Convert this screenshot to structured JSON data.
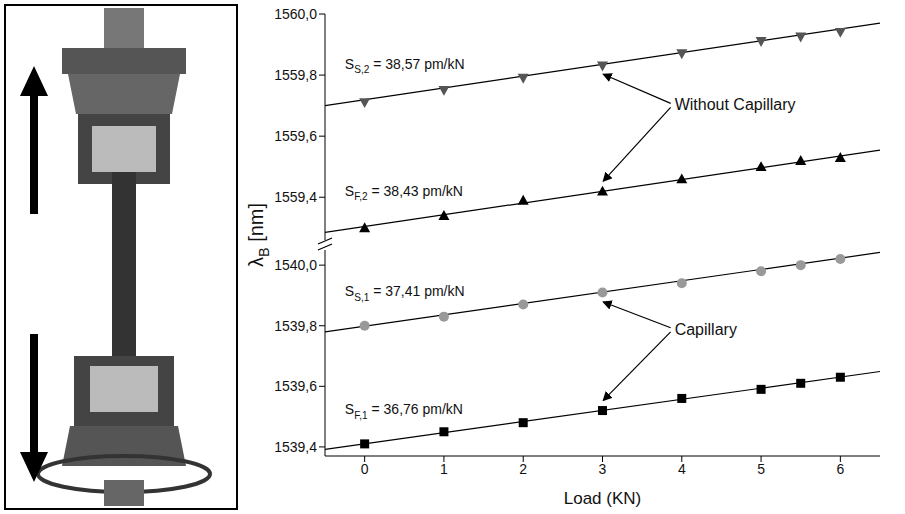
{
  "chart_data": [
    {
      "type": "scatter",
      "y_label": "λB [nm]",
      "tick_labels": "y",
      "xlim": [
        -0.5,
        6.5
      ],
      "ylim": [
        1559.26,
        1560.0
      ],
      "yticks": [
        {
          "value": 1559.4,
          "label": "1559,4"
        },
        {
          "value": 1559.6,
          "label": "1559,6"
        },
        {
          "value": 1559.8,
          "label": "1559,8"
        },
        {
          "value": 1560.0,
          "label": "1560,0"
        }
      ],
      "annotations": [
        {
          "text": "Without Capillary"
        }
      ],
      "series": [
        {
          "name": "SS,2 = 38,57 pm/kN",
          "color": "#555555",
          "marker": "triangle-down",
          "x": [
            0,
            1,
            2,
            3,
            4,
            5,
            5.5,
            6
          ],
          "values": [
            1559.71,
            1559.75,
            1559.79,
            1559.83,
            1559.87,
            1559.91,
            1559.925,
            1559.94
          ],
          "fit": {
            "x": [
              -0.5,
              6.5
            ],
            "values": [
              1559.7,
              1559.97
            ]
          }
        },
        {
          "name": "SF,2 = 38,43 pm/kN",
          "color": "#000000",
          "marker": "triangle-up",
          "x": [
            0,
            1,
            2,
            3,
            4,
            5,
            5.5,
            6
          ],
          "values": [
            1559.3,
            1559.34,
            1559.39,
            1559.42,
            1559.46,
            1559.5,
            1559.52,
            1559.53
          ],
          "fit": {
            "x": [
              -0.5,
              6.5
            ],
            "values": [
              1559.285,
              1559.554
            ]
          }
        }
      ]
    },
    {
      "type": "scatter",
      "x_label": "Load (KN)",
      "xlim": [
        -0.5,
        6.5
      ],
      "xticks": [
        0,
        1,
        2,
        3,
        4,
        5,
        6
      ],
      "ylim": [
        1539.37,
        1540.05
      ],
      "yticks": [
        {
          "value": 1539.4,
          "label": "1539,4"
        },
        {
          "value": 1539.6,
          "label": "1539,6"
        },
        {
          "value": 1539.8,
          "label": "1539,8"
        },
        {
          "value": 1540.0,
          "label": "1540,0"
        }
      ],
      "annotations": [
        {
          "text": "Capillary"
        }
      ],
      "series": [
        {
          "name": "SS,1 = 37,41 pm/kN",
          "color": "#999999",
          "marker": "circle",
          "x": [
            0,
            1,
            2,
            3,
            4,
            5,
            5.5,
            6
          ],
          "values": [
            1539.8,
            1539.83,
            1539.87,
            1539.91,
            1539.94,
            1539.98,
            1540.0,
            1540.02
          ],
          "fit": {
            "x": [
              -0.5,
              6.5
            ],
            "values": [
              1539.78,
              1540.042
            ]
          }
        },
        {
          "name": "SF,1 = 36,76 pm/kN",
          "color": "#000000",
          "marker": "square",
          "x": [
            0,
            1,
            2,
            3,
            4,
            5,
            5.5,
            6
          ],
          "values": [
            1539.41,
            1539.45,
            1539.48,
            1539.52,
            1539.56,
            1539.59,
            1539.61,
            1539.63
          ],
          "fit": {
            "x": [
              -0.5,
              6.5
            ],
            "values": [
              1539.392,
              1539.649
            ]
          }
        }
      ]
    }
  ]
}
